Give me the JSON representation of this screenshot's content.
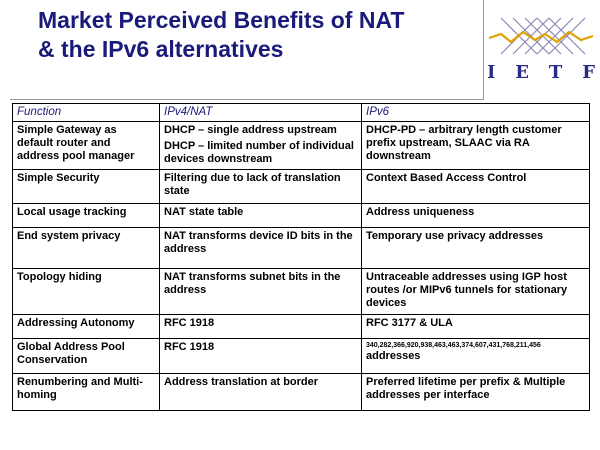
{
  "slide": {
    "title_line1": "Market Perceived Benefits of NAT",
    "title_line2": "& the IPv6 alternatives",
    "logo_letters": [
      "I",
      "E",
      "T",
      "F"
    ]
  },
  "table": {
    "headers": [
      "Function",
      "IPv4/NAT",
      "IPv6"
    ],
    "rows": [
      {
        "function": "Simple Gateway as default router and address pool manager",
        "ipv4": [
          "DHCP – single address upstream",
          "DHCP – limited number of individual devices downstream"
        ],
        "ipv6": "DHCP-PD – arbitrary length customer prefix upstream, SLAAC via RA downstream"
      },
      {
        "function": "Simple Security",
        "ipv4": [
          "Filtering due to lack of translation state"
        ],
        "ipv6": "Context Based Access Control"
      },
      {
        "function": "Local usage tracking",
        "ipv4": [
          "NAT state table"
        ],
        "ipv6": "Address uniqueness"
      },
      {
        "function": "End system privacy",
        "ipv4": [
          "NAT transforms device ID bits in the address"
        ],
        "ipv6": "Temporary use privacy addresses"
      },
      {
        "function": "Topology hiding",
        "ipv4": [
          "NAT transforms subnet bits in the address"
        ],
        "ipv6": "Untraceable addresses using IGP host routes /or MIPv6 tunnels for stationary devices"
      },
      {
        "function": "Addressing Autonomy",
        "ipv4": [
          "RFC 1918"
        ],
        "ipv6": "RFC 3177 & ULA"
      },
      {
        "function": "Global Address Pool Conservation",
        "ipv4": [
          "RFC 1918"
        ],
        "ipv6_small": "340,282,366,920,938,463,463,374,607,431,768,211,456",
        "ipv6": "addresses"
      },
      {
        "function": "Renumbering and Multi-homing",
        "ipv4": [
          "Address translation at border"
        ],
        "ipv6": "Preferred lifetime per prefix & Multiple addresses per interface"
      }
    ]
  }
}
